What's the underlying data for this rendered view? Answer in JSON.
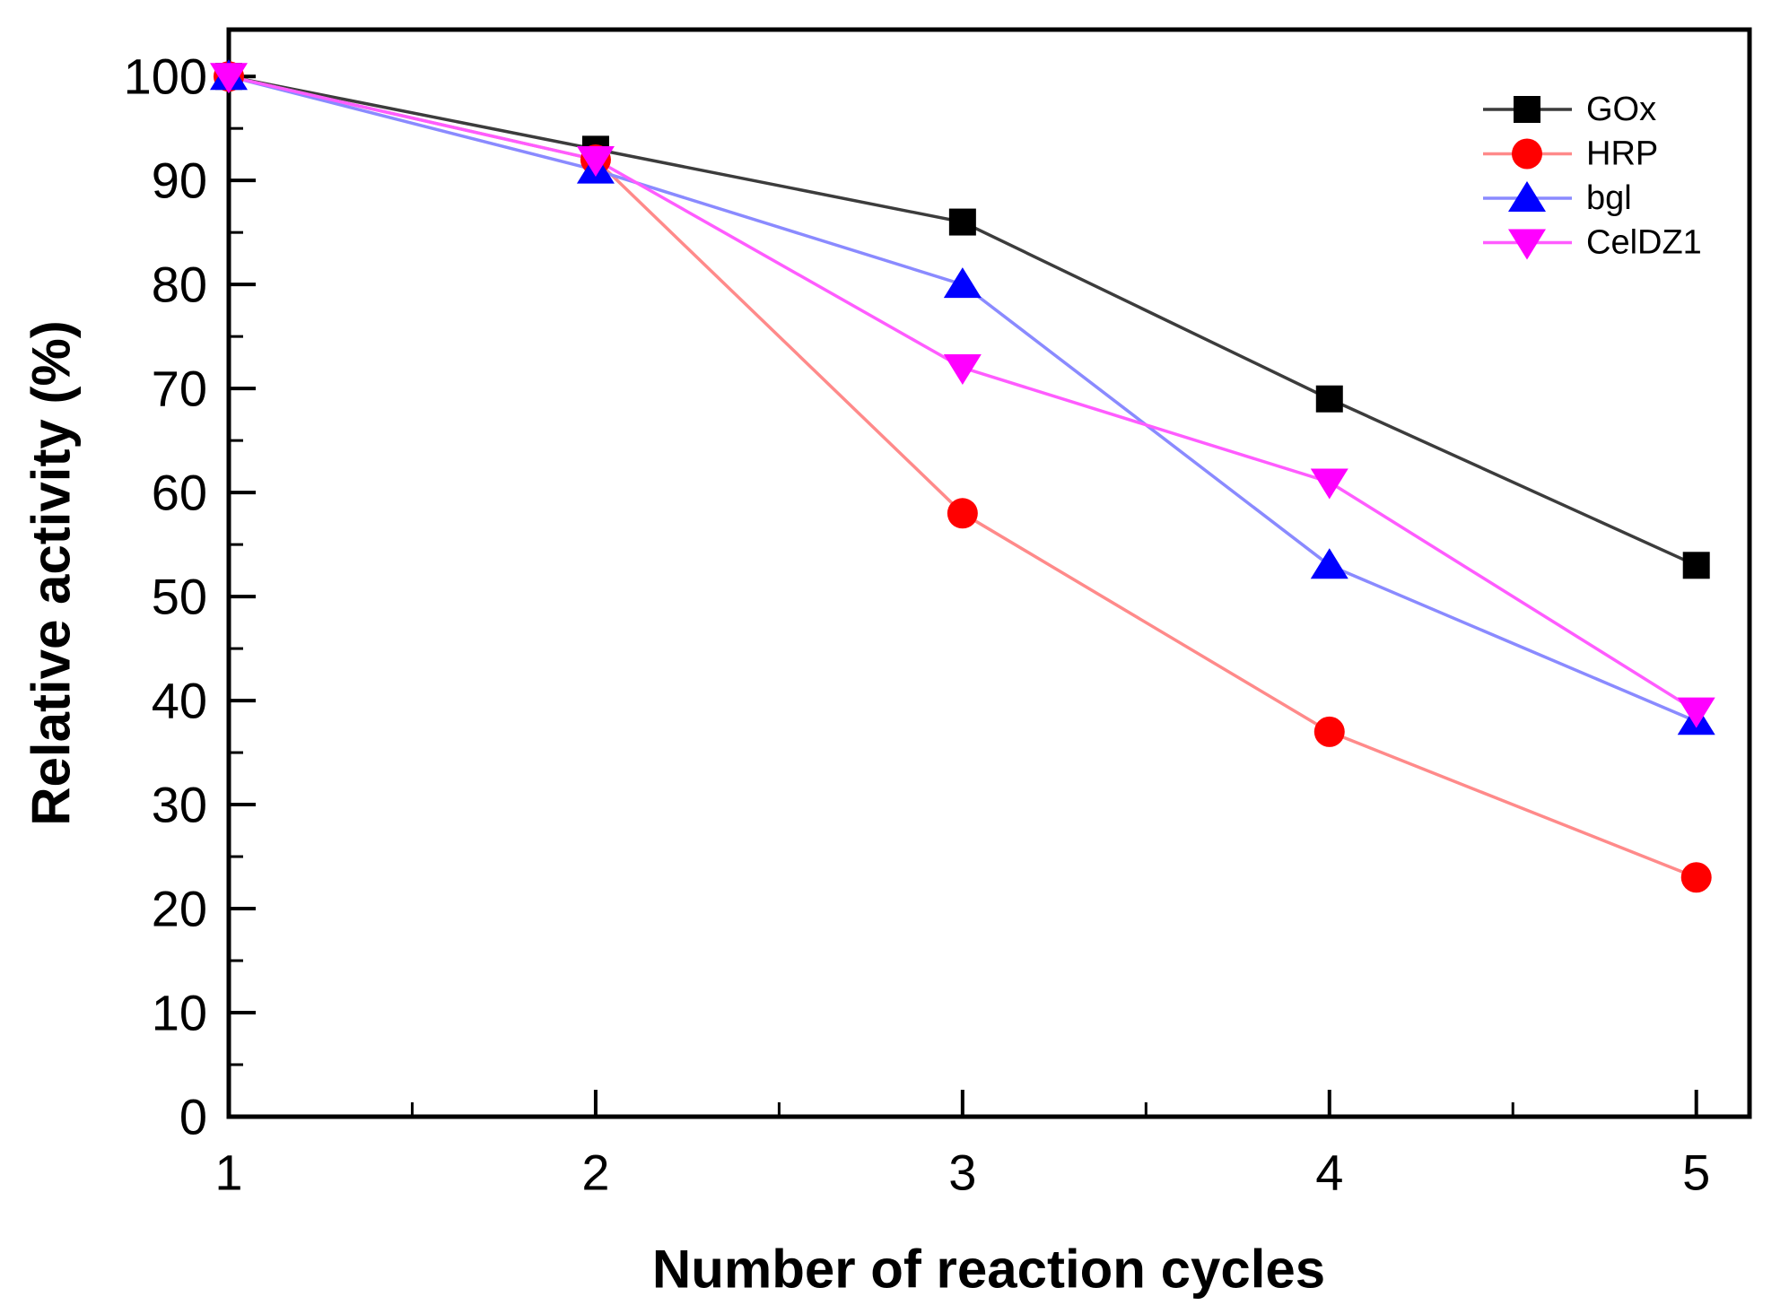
{
  "chart_data": {
    "type": "line",
    "title": "",
    "xlabel": "Number of reaction cycles",
    "ylabel": "Relative activity (%)",
    "x": [
      1,
      2,
      3,
      4,
      5
    ],
    "xlim": [
      1,
      5.145
    ],
    "ylim": [
      0,
      104.5
    ],
    "x_major_ticks": [
      1,
      2,
      3,
      4,
      5
    ],
    "x_minor_ticks": [
      1.5,
      2.5,
      3.5,
      4.5
    ],
    "y_major_ticks": [
      0,
      10,
      20,
      30,
      40,
      50,
      60,
      70,
      80,
      90,
      100
    ],
    "y_minor_ticks": [
      5,
      15,
      25,
      35,
      45,
      55,
      65,
      75,
      85,
      95
    ],
    "grid": false,
    "legend_position": "top-right",
    "frame_color": "#000000",
    "series": [
      {
        "name": "GOx",
        "marker": "square",
        "marker_color": "#000000",
        "line_color": "#3c3c3c",
        "values": [
          100,
          93,
          86,
          69,
          53
        ]
      },
      {
        "name": "HRP",
        "marker": "circle",
        "marker_color": "#ff0000",
        "line_color": "#ff8a8a",
        "values": [
          100,
          92,
          58,
          37,
          23
        ]
      },
      {
        "name": "bgl",
        "marker": "triangle-up",
        "marker_color": "#0000ff",
        "line_color": "#8a8aff",
        "values": [
          100,
          91,
          80,
          53,
          38
        ]
      },
      {
        "name": "CelDZ1",
        "marker": "triangle-down",
        "marker_color": "#ff00ff",
        "line_color": "#ff5cff",
        "values": [
          100,
          92,
          72,
          61,
          39
        ]
      }
    ]
  }
}
